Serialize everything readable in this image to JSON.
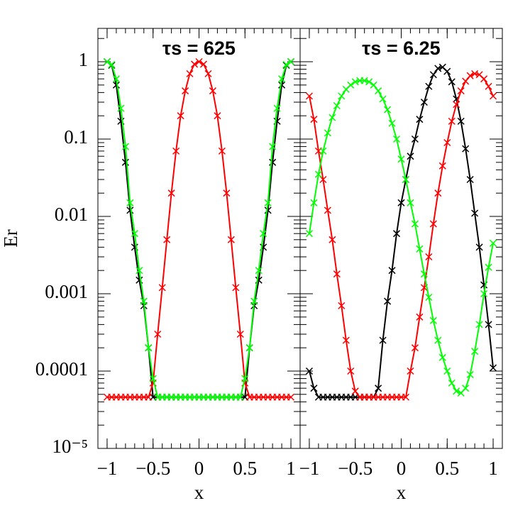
{
  "chart_data": [
    {
      "type": "line",
      "title": "τs = 625",
      "xlabel": "x",
      "ylabel": "Er",
      "log_y": true,
      "xlim": [
        -1.1,
        1.1
      ],
      "ylim": [
        1e-05,
        2.7
      ],
      "xticks": [
        {
          "value": -1,
          "label": "−1"
        },
        {
          "value": -0.5,
          "label": "−0.5"
        },
        0,
        0.5,
        1
      ],
      "yticks": [
        {
          "value": 1e-05,
          "label": "10⁻⁵"
        },
        0.0001,
        0.001,
        0.01,
        0.1,
        1
      ],
      "x": [
        -1,
        -0.95,
        -0.9,
        -0.85,
        -0.8,
        -0.75,
        -0.7,
        -0.65,
        -0.6,
        -0.55,
        -0.5,
        -0.45,
        -0.4,
        -0.35,
        -0.3,
        -0.25,
        -0.2,
        -0.15,
        -0.1,
        -0.05,
        0,
        0.05,
        0.1,
        0.15,
        0.2,
        0.25,
        0.3,
        0.35,
        0.4,
        0.45,
        0.5,
        0.55,
        0.6,
        0.65,
        0.7,
        0.75,
        0.8,
        0.85,
        0.9,
        0.95,
        1
      ],
      "series": [
        {
          "color": "#000000",
          "values": [
            1,
            0.9,
            0.5,
            0.17,
            0.05,
            0.012,
            0.004,
            0.0015,
            0.0007,
            0.0002,
            4.6e-05,
            4.6e-05,
            4.6e-05,
            4.6e-05,
            4.6e-05,
            4.6e-05,
            4.6e-05,
            4.6e-05,
            4.6e-05,
            4.6e-05,
            4.6e-05,
            4.6e-05,
            4.6e-05,
            4.6e-05,
            4.6e-05,
            4.6e-05,
            4.6e-05,
            4.6e-05,
            4.6e-05,
            4.6e-05,
            4.6e-05,
            0.0002,
            0.0007,
            0.0015,
            0.004,
            0.012,
            0.05,
            0.17,
            0.5,
            0.9,
            1
          ]
        },
        {
          "color": "#ff0000",
          "values": [
            4.6e-05,
            4.6e-05,
            4.6e-05,
            4.6e-05,
            4.6e-05,
            4.6e-05,
            4.6e-05,
            4.6e-05,
            4.6e-05,
            4.6e-05,
            7e-05,
            0.0003,
            0.0012,
            0.005,
            0.02,
            0.07,
            0.2,
            0.42,
            0.7,
            0.93,
            1,
            0.93,
            0.7,
            0.42,
            0.2,
            0.07,
            0.02,
            0.005,
            0.0012,
            0.0003,
            7e-05,
            4.6e-05,
            4.6e-05,
            4.6e-05,
            4.6e-05,
            4.6e-05,
            4.6e-05,
            4.6e-05,
            4.6e-05,
            4.6e-05,
            4.6e-05
          ]
        },
        {
          "color": "#00ff00",
          "values": [
            1,
            0.92,
            0.6,
            0.25,
            0.08,
            0.015,
            0.006,
            0.002,
            0.0008,
            0.0002,
            8e-05,
            4.6e-05,
            4.6e-05,
            4.6e-05,
            4.6e-05,
            4.6e-05,
            4.6e-05,
            4.6e-05,
            4.6e-05,
            4.6e-05,
            4.6e-05,
            4.6e-05,
            4.6e-05,
            4.6e-05,
            4.6e-05,
            4.6e-05,
            4.6e-05,
            4.6e-05,
            4.6e-05,
            4.6e-05,
            8e-05,
            0.0002,
            0.0008,
            0.002,
            0.006,
            0.015,
            0.08,
            0.25,
            0.6,
            0.92,
            1
          ]
        }
      ]
    },
    {
      "type": "line",
      "title": "τs = 6.25",
      "xlabel": "x",
      "log_y": true,
      "xlim": [
        -1.1,
        1.1
      ],
      "ylim": [
        1e-05,
        2.7
      ],
      "xticks": [
        {
          "value": -1,
          "label": "−1"
        },
        {
          "value": -0.5,
          "label": "−0.5"
        },
        0,
        0.5,
        1
      ],
      "x": [
        -1,
        -0.95,
        -0.9,
        -0.85,
        -0.8,
        -0.75,
        -0.7,
        -0.65,
        -0.6,
        -0.55,
        -0.5,
        -0.45,
        -0.4,
        -0.35,
        -0.3,
        -0.25,
        -0.2,
        -0.15,
        -0.1,
        -0.05,
        0,
        0.05,
        0.1,
        0.15,
        0.2,
        0.25,
        0.3,
        0.35,
        0.4,
        0.45,
        0.5,
        0.55,
        0.6,
        0.65,
        0.7,
        0.75,
        0.8,
        0.85,
        0.9,
        0.95,
        1
      ],
      "series": [
        {
          "color": "#000000",
          "values": [
            0.0001,
            6e-05,
            4.6e-05,
            4.6e-05,
            4.6e-05,
            4.6e-05,
            4.6e-05,
            4.6e-05,
            4.6e-05,
            4.6e-05,
            4.6e-05,
            4.6e-05,
            4.6e-05,
            4.6e-05,
            4.6e-05,
            6e-05,
            0.00025,
            0.0008,
            0.002,
            0.006,
            0.015,
            0.03,
            0.06,
            0.1,
            0.18,
            0.3,
            0.48,
            0.68,
            0.82,
            0.85,
            0.75,
            0.55,
            0.33,
            0.17,
            0.075,
            0.03,
            0.011,
            0.004,
            0.0013,
            0.0004,
            0.00011
          ]
        },
        {
          "color": "#ff0000",
          "values": [
            0.36,
            0.18,
            0.07,
            0.03,
            0.012,
            0.005,
            0.0018,
            0.0007,
            0.00025,
            0.0001,
            5.5e-05,
            4.6e-05,
            4.6e-05,
            4.6e-05,
            4.6e-05,
            4.6e-05,
            4.6e-05,
            4.6e-05,
            4.6e-05,
            4.6e-05,
            4.6e-05,
            4.6e-05,
            0.0001,
            0.0002,
            0.0005,
            0.0012,
            0.003,
            0.008,
            0.02,
            0.045,
            0.09,
            0.17,
            0.28,
            0.42,
            0.56,
            0.66,
            0.7,
            0.68,
            0.6,
            0.48,
            0.36
          ]
        },
        {
          "color": "#00ff00",
          "values": [
            0.006,
            0.015,
            0.035,
            0.07,
            0.12,
            0.19,
            0.27,
            0.36,
            0.44,
            0.5,
            0.55,
            0.57,
            0.57,
            0.55,
            0.5,
            0.42,
            0.33,
            0.24,
            0.16,
            0.1,
            0.055,
            0.03,
            0.015,
            0.008,
            0.0038,
            0.0018,
            0.0009,
            0.00045,
            0.00025,
            0.00015,
            0.0001,
            7e-05,
            5.5e-05,
            5.2e-05,
            6e-05,
            9e-05,
            0.00018,
            0.0004,
            0.001,
            0.0022,
            0.0045
          ]
        }
      ]
    }
  ]
}
